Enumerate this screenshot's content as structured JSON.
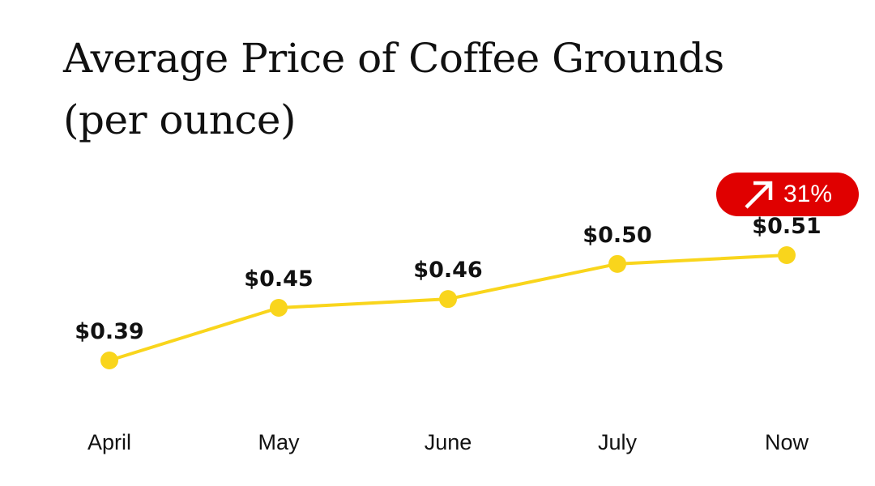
{
  "chart_data": {
    "type": "line",
    "title_lines": [
      "Average Price of Coffee Grounds",
      "(per ounce)"
    ],
    "categories": [
      "April",
      "May",
      "June",
      "July",
      "Now"
    ],
    "values": [
      0.39,
      0.45,
      0.46,
      0.5,
      0.51
    ],
    "data_labels": [
      "$0.39",
      "$0.45",
      "$0.46",
      "$0.50",
      "$0.51"
    ],
    "xlabel": "",
    "ylabel": "",
    "ylim": [
      0.33,
      0.57
    ],
    "grid": false,
    "line_color": "#f9d51c",
    "marker_color": "#f9d51c",
    "change_badge": {
      "text": "31%",
      "icon": "arrow-up-right-icon",
      "background": "#e00000",
      "text_color": "#ffffff"
    }
  }
}
